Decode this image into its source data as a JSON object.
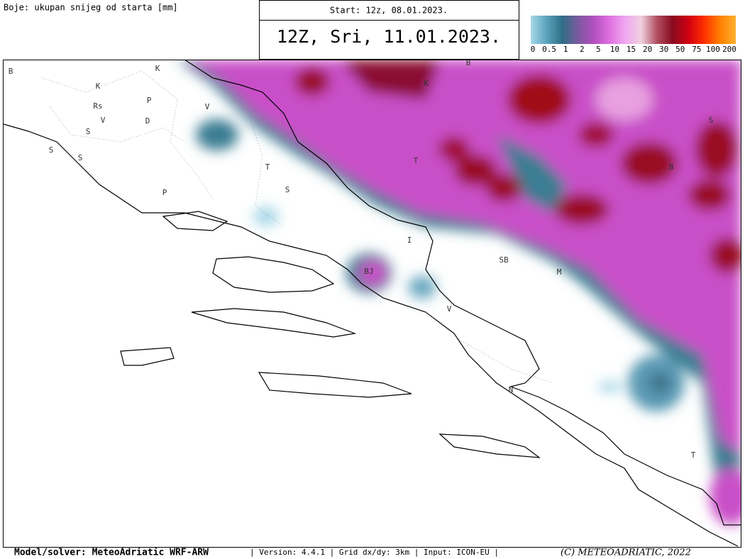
{
  "header": {
    "legend_caption": "Boje: ukupan snijeg od starta [mm]",
    "start": "Start: 12z, 08.01.2023.",
    "valid": "12Z, Sri, 11.01.2023."
  },
  "colorbar": {
    "ticks": [
      0,
      0.5,
      1,
      2,
      5,
      10,
      15,
      20,
      30,
      50,
      75,
      100,
      200
    ],
    "colors": [
      "#a8d8e8",
      "#5aa3bd",
      "#2f6e86",
      "#7a5a9e",
      "#b24fc0",
      "#e070e0",
      "#f0a8f0",
      "#f0d0e0",
      "#b05060",
      "#8a0a20",
      "#d00010",
      "#ff3000",
      "#ff8000",
      "#ffb030"
    ]
  },
  "map_labels": [
    "B",
    "K",
    "K",
    "Rs",
    "P",
    "V",
    "D",
    "S",
    "V",
    "S",
    "S",
    "P",
    "T",
    "S",
    "I",
    "SB",
    "M",
    "BJ",
    "V",
    "N",
    "T",
    "B",
    "K",
    "T",
    "S",
    "B"
  ],
  "footer": {
    "model": "Model/solver: MeteoAdriatic WRF-ARW",
    "info": "| Version: 4.4.1 | Grid dx/dy: 3km | Input: ICON-EU |",
    "copyright": "(C) METEOADRIATIC, 2022"
  }
}
